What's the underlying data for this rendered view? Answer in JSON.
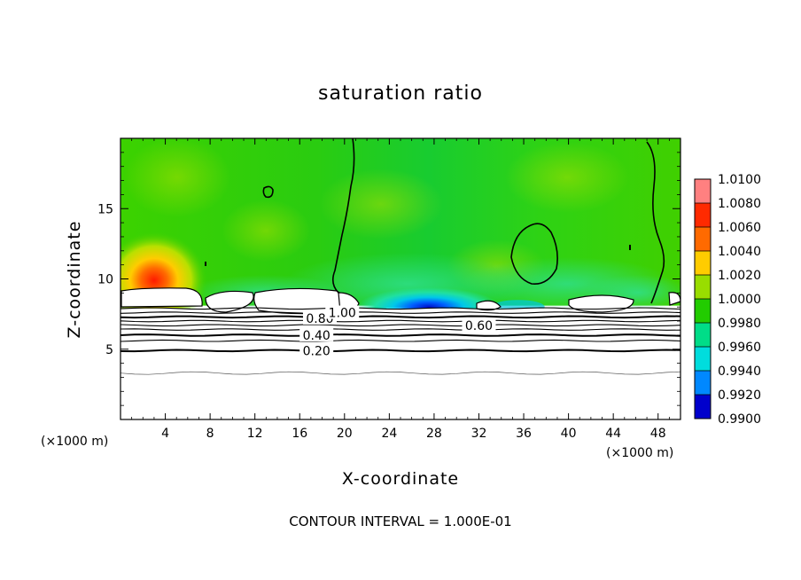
{
  "chart_data": {
    "type": "heatmap",
    "title": "saturation ratio",
    "xlabel": "X-coordinate",
    "ylabel": "Z-coordinate",
    "x_unit_left": "(×1000 m)",
    "x_unit_right": "(×1000 m)",
    "xlim": [
      0,
      50
    ],
    "ylim": [
      0,
      20
    ],
    "x_ticks": [
      4,
      8,
      12,
      16,
      20,
      24,
      28,
      32,
      36,
      40,
      44,
      48
    ],
    "y_ticks": [
      5,
      10,
      15
    ],
    "footer": "CONTOUR INTERVAL = 1.000E-01",
    "colorbar": {
      "labels": [
        "1.0100",
        "1.0080",
        "1.0060",
        "1.0040",
        "1.0020",
        "1.0000",
        "0.9980",
        "0.9960",
        "0.9940",
        "0.9920",
        "0.9900"
      ],
      "values": [
        1.01,
        1.008,
        1.006,
        1.004,
        1.002,
        1.0,
        0.998,
        0.996,
        0.994,
        0.992,
        0.99
      ],
      "colors": [
        "#ff8080",
        "#ff2a00",
        "#ff6a00",
        "#ffcc00",
        "#99dd00",
        "#22cc00",
        "#00dd88",
        "#00dddd",
        "#0088ff",
        "#0000cc",
        "#220077"
      ],
      "min": 0.99,
      "max": 1.01
    },
    "contour_labels": [
      {
        "text": "0.80",
        "x": 17.8,
        "z": 7.2
      },
      {
        "text": "1.00",
        "x": 19.8,
        "z": 7.6
      },
      {
        "text": "0.60",
        "x": 32.0,
        "z": 6.7
      },
      {
        "text": "0.40",
        "x": 17.5,
        "z": 6.0
      },
      {
        "text": "0.20",
        "x": 17.5,
        "z": 4.9
      }
    ],
    "contour_levels": [
      0.1,
      0.2,
      0.3,
      0.4,
      0.5,
      0.6,
      0.7,
      0.8,
      0.9,
      1.0
    ],
    "field_features": [
      {
        "region": "upper domain",
        "value": 1.0005
      },
      {
        "region": "warm maximum near x=3, z=10",
        "value": 1.0075
      },
      {
        "region": "minimum near x=27, z=8",
        "value": 0.9925
      }
    ]
  }
}
